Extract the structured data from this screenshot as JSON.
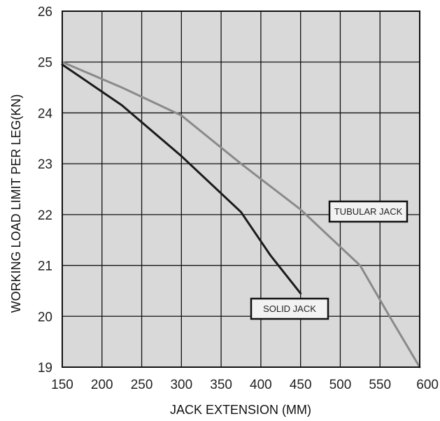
{
  "chart_data": {
    "type": "line",
    "title": "",
    "xlabel": "JACK EXTENSION (MM)",
    "ylabel": "WORKING LOAD LIMIT PER LEG(KN)",
    "xlim": [
      150,
      600
    ],
    "ylim": [
      19,
      26
    ],
    "x_ticks": [
      150,
      200,
      250,
      300,
      350,
      400,
      450,
      500,
      550,
      600
    ],
    "y_ticks": [
      19,
      20,
      21,
      22,
      23,
      24,
      25,
      26
    ],
    "grid": true,
    "series": [
      {
        "name": "TUBULAR JACK",
        "color": "#8a8a8a",
        "points": [
          [
            150,
            25.0
          ],
          [
            225,
            24.5
          ],
          [
            300,
            23.95
          ],
          [
            375,
            23.0
          ],
          [
            450,
            22.1
          ],
          [
            525,
            21.0
          ],
          [
            562,
            20.0
          ],
          [
            600,
            19.0
          ]
        ]
      },
      {
        "name": "SOLID JACK",
        "color": "#1a1a1a",
        "points": [
          [
            150,
            24.95
          ],
          [
            225,
            24.15
          ],
          [
            300,
            23.15
          ],
          [
            375,
            22.05
          ],
          [
            412,
            21.2
          ],
          [
            450,
            20.45
          ]
        ]
      }
    ]
  }
}
